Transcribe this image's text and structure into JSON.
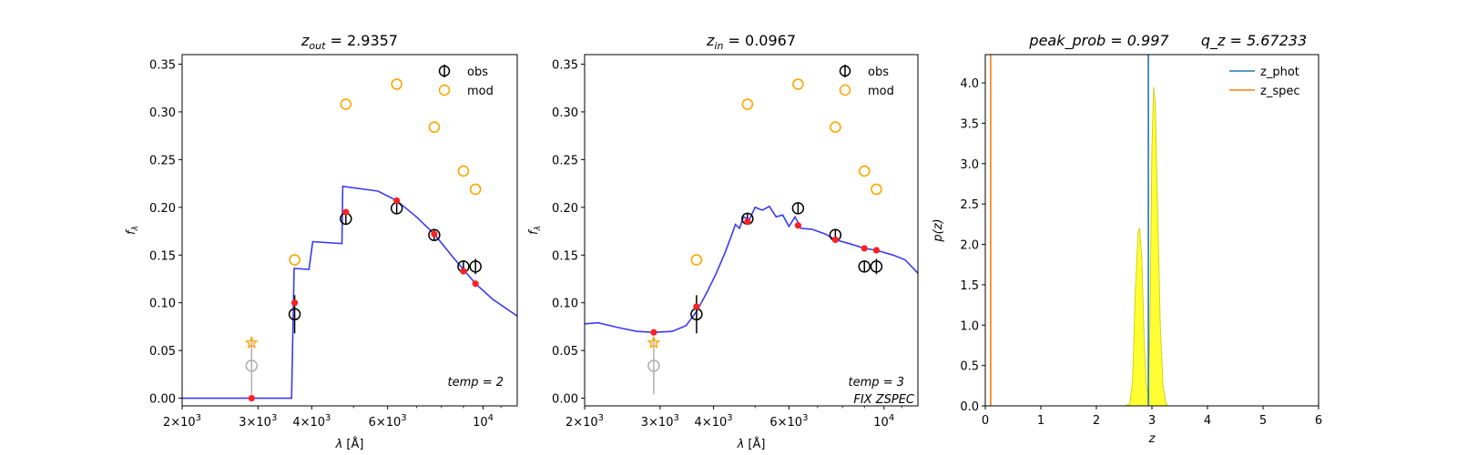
{
  "chart_data": [
    {
      "type": "scatter",
      "title": "z_out = 2.9357",
      "title_main": "z",
      "title_sub": "out",
      "title_rest": " = 2.9357",
      "xlabel": "λ [Å]",
      "ylabel": "f_λ",
      "xscale": "log",
      "xlim": [
        2000,
        12000
      ],
      "ylim": [
        -0.008,
        0.36
      ],
      "xticks": [
        {
          "value": 2000,
          "label": "2×10^3"
        },
        {
          "value": 3000,
          "label": "3×10^3"
        },
        {
          "value": 4000,
          "label": "4×10^3"
        },
        {
          "value": 6000,
          "label": "6×10^3"
        },
        {
          "value": 10000,
          "label": "10^4"
        }
      ],
      "yticks": [
        "0.00",
        "0.05",
        "0.10",
        "0.15",
        "0.20",
        "0.25",
        "0.30",
        "0.35"
      ],
      "legend": {
        "position": "top-right",
        "entries": [
          "obs",
          "mod"
        ]
      },
      "annotation": "temp = 2",
      "series": [
        {
          "name": "obs",
          "color": "#000000",
          "points": [
            {
              "x": 3650,
              "y": 0.088,
              "err": 0.02
            },
            {
              "x": 4800,
              "y": 0.188,
              "err": 0.006
            },
            {
              "x": 6300,
              "y": 0.199,
              "err": 0.006
            },
            {
              "x": 7700,
              "y": 0.171,
              "err": 0.005
            },
            {
              "x": 9000,
              "y": 0.138,
              "err": 0.006
            },
            {
              "x": 9600,
              "y": 0.138,
              "err": 0.008
            }
          ]
        },
        {
          "name": "obs (upper limit)",
          "color": "#b0b0b0",
          "points": [
            {
              "x": 2900,
              "y": 0.034,
              "err": 0.03
            }
          ]
        },
        {
          "name": "mod",
          "color": "#ffa500",
          "points": [
            {
              "x": 3650,
              "y": 0.145
            },
            {
              "x": 4800,
              "y": 0.308
            },
            {
              "x": 6300,
              "y": 0.329
            },
            {
              "x": 7700,
              "y": 0.284
            },
            {
              "x": 9000,
              "y": 0.238
            },
            {
              "x": 9600,
              "y": 0.219
            }
          ]
        },
        {
          "name": "mod star",
          "color": "#ffa500",
          "points": [
            {
              "x": 2900,
              "y": 0.058
            }
          ]
        },
        {
          "name": "template",
          "color": "#3a3af5",
          "line": [
            [
              2000,
              0.0
            ],
            [
              3590,
              0.0
            ],
            [
              3640,
              0.136
            ],
            [
              3940,
              0.135
            ],
            [
              4020,
              0.164
            ],
            [
              4700,
              0.162
            ],
            [
              4720,
              0.222
            ],
            [
              5700,
              0.217
            ],
            [
              6300,
              0.207
            ],
            [
              7000,
              0.19
            ],
            [
              7700,
              0.172
            ],
            [
              8500,
              0.148
            ],
            [
              9600,
              0.12
            ],
            [
              10500,
              0.104
            ],
            [
              12000,
              0.086
            ]
          ]
        },
        {
          "name": "template at filters",
          "color": "#ff2020",
          "points": [
            {
              "x": 2900,
              "y": 0.0
            },
            {
              "x": 3650,
              "y": 0.1
            },
            {
              "x": 4800,
              "y": 0.195
            },
            {
              "x": 6300,
              "y": 0.207
            },
            {
              "x": 7700,
              "y": 0.172
            },
            {
              "x": 9000,
              "y": 0.133
            },
            {
              "x": 9600,
              "y": 0.12
            }
          ]
        }
      ]
    },
    {
      "type": "scatter",
      "title": "z_in = 0.0967",
      "title_main": "z",
      "title_sub": "in",
      "title_rest": " = 0.0967",
      "xlabel": "λ [Å]",
      "ylabel": "f_λ",
      "xscale": "log",
      "xlim": [
        2000,
        12000
      ],
      "ylim": [
        -0.008,
        0.36
      ],
      "xticks": [
        {
          "value": 2000,
          "label": "2×10^3"
        },
        {
          "value": 3000,
          "label": "3×10^3"
        },
        {
          "value": 4000,
          "label": "4×10^3"
        },
        {
          "value": 6000,
          "label": "6×10^3"
        },
        {
          "value": 10000,
          "label": "10^4"
        }
      ],
      "yticks": [
        "0.00",
        "0.05",
        "0.10",
        "0.15",
        "0.20",
        "0.25",
        "0.30",
        "0.35"
      ],
      "legend": {
        "position": "top-right",
        "entries": [
          "obs",
          "mod"
        ]
      },
      "annotation": "temp = 3",
      "annotation2": "FIX ZSPEC",
      "series": [
        {
          "name": "obs",
          "color": "#000000",
          "points": [
            {
              "x": 3650,
              "y": 0.088,
              "err": 0.02
            },
            {
              "x": 4800,
              "y": 0.188,
              "err": 0.006
            },
            {
              "x": 6300,
              "y": 0.199,
              "err": 0.006
            },
            {
              "x": 7700,
              "y": 0.171,
              "err": 0.005
            },
            {
              "x": 9000,
              "y": 0.138,
              "err": 0.006
            },
            {
              "x": 9600,
              "y": 0.138,
              "err": 0.008
            }
          ]
        },
        {
          "name": "obs (upper limit)",
          "color": "#b0b0b0",
          "points": [
            {
              "x": 2900,
              "y": 0.034,
              "err": 0.03
            }
          ]
        },
        {
          "name": "mod",
          "color": "#ffa500",
          "points": [
            {
              "x": 3650,
              "y": 0.145
            },
            {
              "x": 4800,
              "y": 0.308
            },
            {
              "x": 6300,
              "y": 0.329
            },
            {
              "x": 7700,
              "y": 0.284
            },
            {
              "x": 9000,
              "y": 0.238
            },
            {
              "x": 9600,
              "y": 0.219
            }
          ]
        },
        {
          "name": "mod star",
          "color": "#ffa500",
          "points": [
            {
              "x": 2900,
              "y": 0.058
            }
          ]
        },
        {
          "name": "template",
          "color": "#3a3af5",
          "line": [
            [
              2000,
              0.078
            ],
            [
              2150,
              0.079
            ],
            [
              2400,
              0.074
            ],
            [
              2650,
              0.07
            ],
            [
              2900,
              0.069
            ],
            [
              3200,
              0.07
            ],
            [
              3450,
              0.076
            ],
            [
              3650,
              0.091
            ],
            [
              3850,
              0.11
            ],
            [
              4050,
              0.13
            ],
            [
              4250,
              0.152
            ],
            [
              4400,
              0.17
            ],
            [
              4500,
              0.182
            ],
            [
              4600,
              0.178
            ],
            [
              4700,
              0.19
            ],
            [
              4850,
              0.187
            ],
            [
              5000,
              0.2
            ],
            [
              5200,
              0.197
            ],
            [
              5400,
              0.201
            ],
            [
              5600,
              0.19
            ],
            [
              5800,
              0.192
            ],
            [
              6000,
              0.18
            ],
            [
              6200,
              0.19
            ],
            [
              6400,
              0.178
            ],
            [
              6800,
              0.177
            ],
            [
              7300,
              0.172
            ],
            [
              7700,
              0.166
            ],
            [
              8300,
              0.162
            ],
            [
              9000,
              0.157
            ],
            [
              9600,
              0.155
            ],
            [
              10500,
              0.15
            ],
            [
              11200,
              0.145
            ],
            [
              12000,
              0.131
            ]
          ]
        },
        {
          "name": "template at filters",
          "color": "#ff2020",
          "points": [
            {
              "x": 2900,
              "y": 0.069
            },
            {
              "x": 3650,
              "y": 0.096
            },
            {
              "x": 4800,
              "y": 0.185
            },
            {
              "x": 6300,
              "y": 0.181
            },
            {
              "x": 7700,
              "y": 0.166
            },
            {
              "x": 9000,
              "y": 0.157
            },
            {
              "x": 9600,
              "y": 0.155
            }
          ]
        }
      ]
    },
    {
      "type": "line",
      "title": "peak_prob = 0.997     q_z = 5.67233",
      "title_left": "peak_prob = 0.997",
      "title_right": "q_z = 5.67233",
      "xlabel": "z",
      "ylabel": "p(z)",
      "xlim": [
        0,
        6
      ],
      "ylim": [
        0,
        4.35
      ],
      "xticks": [
        "0",
        "1",
        "2",
        "3",
        "4",
        "5",
        "6"
      ],
      "yticks": [
        "0.0",
        "0.5",
        "1.0",
        "1.5",
        "2.0",
        "2.5",
        "3.0",
        "3.5",
        "4.0"
      ],
      "legend": {
        "position": "top-right",
        "entries": [
          "z_phot",
          "z_spec"
        ]
      },
      "z_phot": 2.9357,
      "z_spec": 0.0967,
      "pdf_color": "#ffff33",
      "series": [
        {
          "name": "p(z)",
          "points": [
            [
              0.0,
              0.0
            ],
            [
              0.09,
              0.0
            ],
            [
              0.095,
              4.3
            ],
            [
              0.1,
              0.0
            ],
            [
              0.2,
              0.0
            ],
            [
              2.5,
              0.0
            ],
            [
              2.6,
              0.02
            ],
            [
              2.65,
              0.3
            ],
            [
              2.7,
              1.4
            ],
            [
              2.75,
              2.15
            ],
            [
              2.78,
              2.2
            ],
            [
              2.82,
              1.8
            ],
            [
              2.86,
              0.8
            ],
            [
              2.9,
              0.25
            ],
            [
              2.93,
              0.15
            ],
            [
              2.96,
              0.8
            ],
            [
              3.0,
              3.2
            ],
            [
              3.03,
              3.95
            ],
            [
              3.06,
              3.75
            ],
            [
              3.1,
              2.5
            ],
            [
              3.15,
              1.0
            ],
            [
              3.2,
              0.25
            ],
            [
              3.25,
              0.03
            ],
            [
              3.3,
              0.0
            ],
            [
              5.0,
              0.0
            ]
          ]
        }
      ],
      "series_colors": {
        "z_phot": "#1f77b4",
        "z_spec": "#ff7f0e"
      }
    }
  ]
}
